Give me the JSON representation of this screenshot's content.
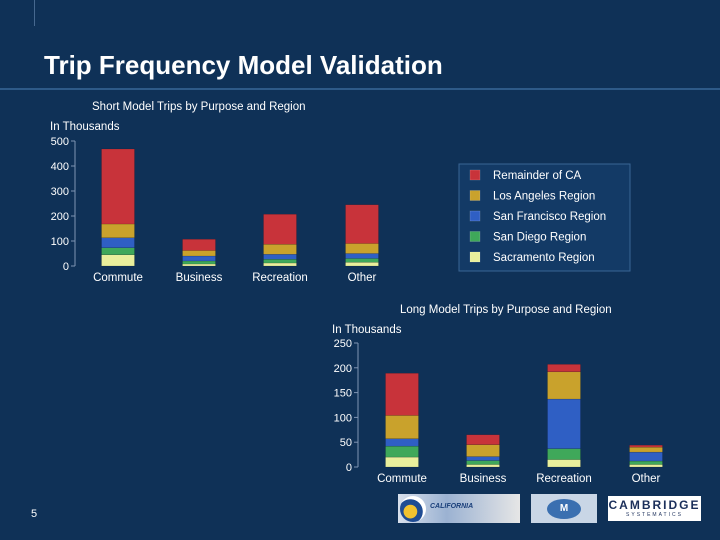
{
  "page": {
    "title": "Trip Frequency Model Validation",
    "page_number": "5",
    "logo_text": {
      "caltrans": "CALIFORNIA",
      "agency": "M",
      "company": "CAMBRIDGE",
      "company_sub": "SYSTEMATICS"
    }
  },
  "legend": {
    "entries": [
      {
        "name": "Remainder of CA",
        "color": "#c8333a"
      },
      {
        "name": "Los Angeles Region",
        "color": "#c9a22c"
      },
      {
        "name": "San Francisco Region",
        "color": "#2f5fc4"
      },
      {
        "name": "San Diego Region",
        "color": "#3fa85a"
      },
      {
        "name": "Sacramento Region",
        "color": "#e9ef9c"
      }
    ]
  },
  "chart_data": [
    {
      "type": "bar",
      "stacked": true,
      "title": "Short Model Trips by Purpose and Region",
      "ylabel": "In Thousands",
      "ylim": [
        0,
        500
      ],
      "yticks": [
        0,
        100,
        200,
        300,
        400,
        500
      ],
      "categories": [
        "Commute",
        "Business",
        "Recreation",
        "Other"
      ],
      "series": [
        {
          "name": "Sacramento Region",
          "values": [
            45,
            8,
            12,
            15
          ]
        },
        {
          "name": "San Diego Region",
          "values": [
            28,
            12,
            15,
            15
          ]
        },
        {
          "name": "San Francisco Region",
          "values": [
            40,
            20,
            20,
            20
          ]
        },
        {
          "name": "Los Angeles Region",
          "values": [
            55,
            22,
            40,
            40
          ]
        },
        {
          "name": "Remainder of CA",
          "values": [
            300,
            45,
            120,
            155
          ]
        }
      ]
    },
    {
      "type": "bar",
      "stacked": true,
      "title": "Long Model Trips by Purpose and Region",
      "ylabel": "In Thousands",
      "ylim": [
        0,
        250
      ],
      "yticks": [
        0,
        50,
        100,
        150,
        200,
        250
      ],
      "categories": [
        "Commute",
        "Business",
        "Recreation",
        "Other"
      ],
      "series": [
        {
          "name": "Sacramento Region",
          "values": [
            20,
            5,
            15,
            5
          ]
        },
        {
          "name": "San Diego Region",
          "values": [
            22,
            8,
            22,
            7
          ]
        },
        {
          "name": "San Francisco Region",
          "values": [
            15,
            8,
            100,
            18
          ]
        },
        {
          "name": "Los Angeles Region",
          "values": [
            47,
            24,
            55,
            10
          ]
        },
        {
          "name": "Remainder of CA",
          "values": [
            85,
            20,
            15,
            4
          ]
        }
      ]
    }
  ]
}
